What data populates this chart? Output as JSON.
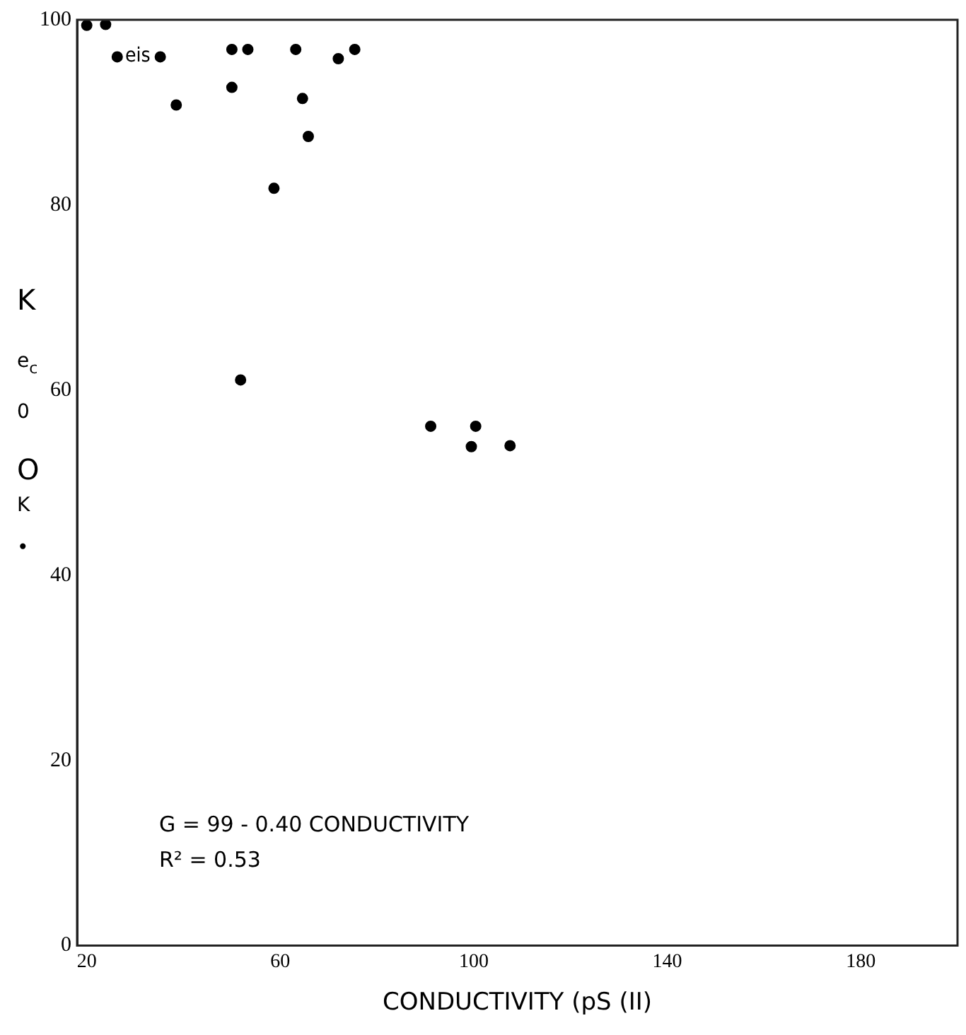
{
  "chart_data": {
    "type": "scatter",
    "xlabel": "CONDUCTIVITY (pS (II)",
    "ylabel": "K e$_{c}$ 0 O K •",
    "annotations": [
      "eis",
      "G = 99 - 0.40 CONDUCTIVITY",
      "R² = 0.53"
    ],
    "series": [
      {
        "color": "#000000",
        "x": [
          20,
          23.9,
          26.3,
          35.2,
          38.5,
          50,
          53.3,
          50,
          63.2,
          64.6,
          65.8,
          72,
          75.4,
          58.7,
          51.8,
          91.1,
          100.4,
          99.5,
          107.5
        ],
        "values": [
          99.4,
          99.5,
          96,
          96,
          90.8,
          96.8,
          96.8,
          92.7,
          96.8,
          91.5,
          87.4,
          95.8,
          96.8,
          81.8,
          61.1,
          56.1,
          56.1,
          53.9,
          54
        ]
      }
    ],
    "xlim": [
      18,
      200
    ],
    "xticks": [
      20,
      60,
      100,
      140,
      180
    ],
    "ylim": [
      0,
      100
    ],
    "yticks": [
      0,
      20,
      40,
      60,
      80,
      100
    ],
    "grid": false,
    "legend": false,
    "marker": "circle"
  }
}
